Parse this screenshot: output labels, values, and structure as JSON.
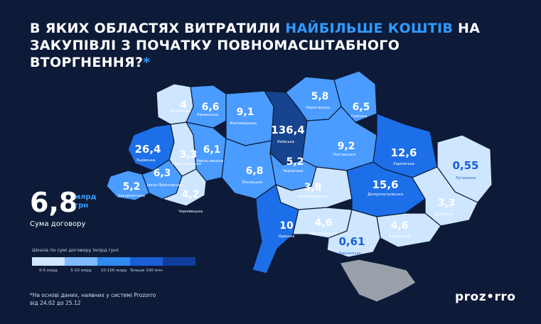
{
  "title": {
    "line1_pre": "В ЯКИХ ОБЛАСТЯХ ВИТРАТИЛИ ",
    "line1_hl": "НАЙБІЛЬШЕ КОШТІВ",
    "line1_post": " НА",
    "line2": "ЗАКУПІВЛІ З ПОЧАТКУ ПОВНОМАСШТАБНОГО ВТОРГНЕННЯ?",
    "star": "*"
  },
  "legend_value": {
    "number": "6,8",
    "unit_line1": "млрд",
    "unit_line2": "грн",
    "caption": "Сума договору"
  },
  "scale": {
    "title": "Шкала по сумі договору (млрд грн)",
    "colors": [
      "#cfe6ff",
      "#7fbaff",
      "#2f8af2",
      "#1a5fd8",
      "#0f3d9c"
    ],
    "labels": [
      "0-5 млрд",
      "5-10 млрд",
      "10-100 млрд",
      "більше 100 млн"
    ]
  },
  "footnote": {
    "line1": "*На основі даних, наявних у системі Prozorro",
    "line2": "від 24.02 до 25.12"
  },
  "logo": {
    "left": "proz",
    "dot": "•",
    "right": "rro"
  },
  "map": {
    "colors": {
      "c05": "#cfe6ff",
      "c510": "#4a9cff",
      "c10100": "#1c6fe8",
      "c100": "#17448f",
      "occupied": "#9aa0aa",
      "border": "#0d1b38"
    },
    "regions": [
      {
        "id": "volyn",
        "value": "4",
        "name": "Волинська",
        "band": "c05"
      },
      {
        "id": "rivne",
        "value": "6,6",
        "name": "Рівненська",
        "band": "c510"
      },
      {
        "id": "zhytomyr",
        "value": "9,1",
        "name": "Житомирська",
        "band": "c510"
      },
      {
        "id": "kyiv",
        "value": "136,4",
        "name": "Київська",
        "band": "c100"
      },
      {
        "id": "chernihiv",
        "value": "5,8",
        "name": "Чернігівська",
        "band": "c510"
      },
      {
        "id": "sumy",
        "value": "6,5",
        "name": "Сумська",
        "band": "c510"
      },
      {
        "id": "lviv",
        "value": "26,4",
        "name": "Львівська",
        "band": "c10100"
      },
      {
        "id": "ternopil",
        "value": "3,3",
        "name": "Терно-пільська",
        "band": "c05"
      },
      {
        "id": "khmelnytskyi",
        "value": "6,1",
        "name": "Хмель-ницька",
        "band": "c510"
      },
      {
        "id": "vinnytsia",
        "value": "6,8",
        "name": "Вінницька",
        "band": "c510"
      },
      {
        "id": "cherkasy",
        "value": "5,2",
        "name": "Черкаська",
        "band": "c510"
      },
      {
        "id": "poltava",
        "value": "9,2",
        "name": "Полтавська",
        "band": "c510"
      },
      {
        "id": "kharkiv",
        "value": "12,6",
        "name": "Харківська",
        "band": "c10100"
      },
      {
        "id": "luhansk",
        "value": "0,55",
        "name": "Луганська",
        "band": "c05"
      },
      {
        "id": "zakarpattia",
        "value": "5,2",
        "name": "Закарпатська",
        "band": "c510"
      },
      {
        "id": "ivano",
        "value": "6,3",
        "name": "Івано-Франківська",
        "band": "c510"
      },
      {
        "id": "chernivtsi",
        "value": "4,2",
        "name": "Чернівецька",
        "band": "c05"
      },
      {
        "id": "kirovohrad",
        "value": "3,8",
        "name": "Кіровоградська",
        "band": "c05"
      },
      {
        "id": "dnipro",
        "value": "15,6",
        "name": "Дніпропетровська",
        "band": "c10100"
      },
      {
        "id": "donetsk",
        "value": "3,3",
        "name": "Донецька",
        "band": "c05"
      },
      {
        "id": "odesa",
        "value": "10",
        "name": "Одеська",
        "band": "c10100"
      },
      {
        "id": "mykolaiv",
        "value": "4,6",
        "name": "Миколаївська",
        "band": "c05"
      },
      {
        "id": "zaporizhzhia",
        "value": "4,6",
        "name": "Запорізька",
        "band": "c05"
      },
      {
        "id": "kherson",
        "value": "0,61",
        "name": "Херсонська",
        "band": "c05"
      },
      {
        "id": "crimea",
        "value": "",
        "name": "",
        "band": "occupied"
      }
    ]
  }
}
